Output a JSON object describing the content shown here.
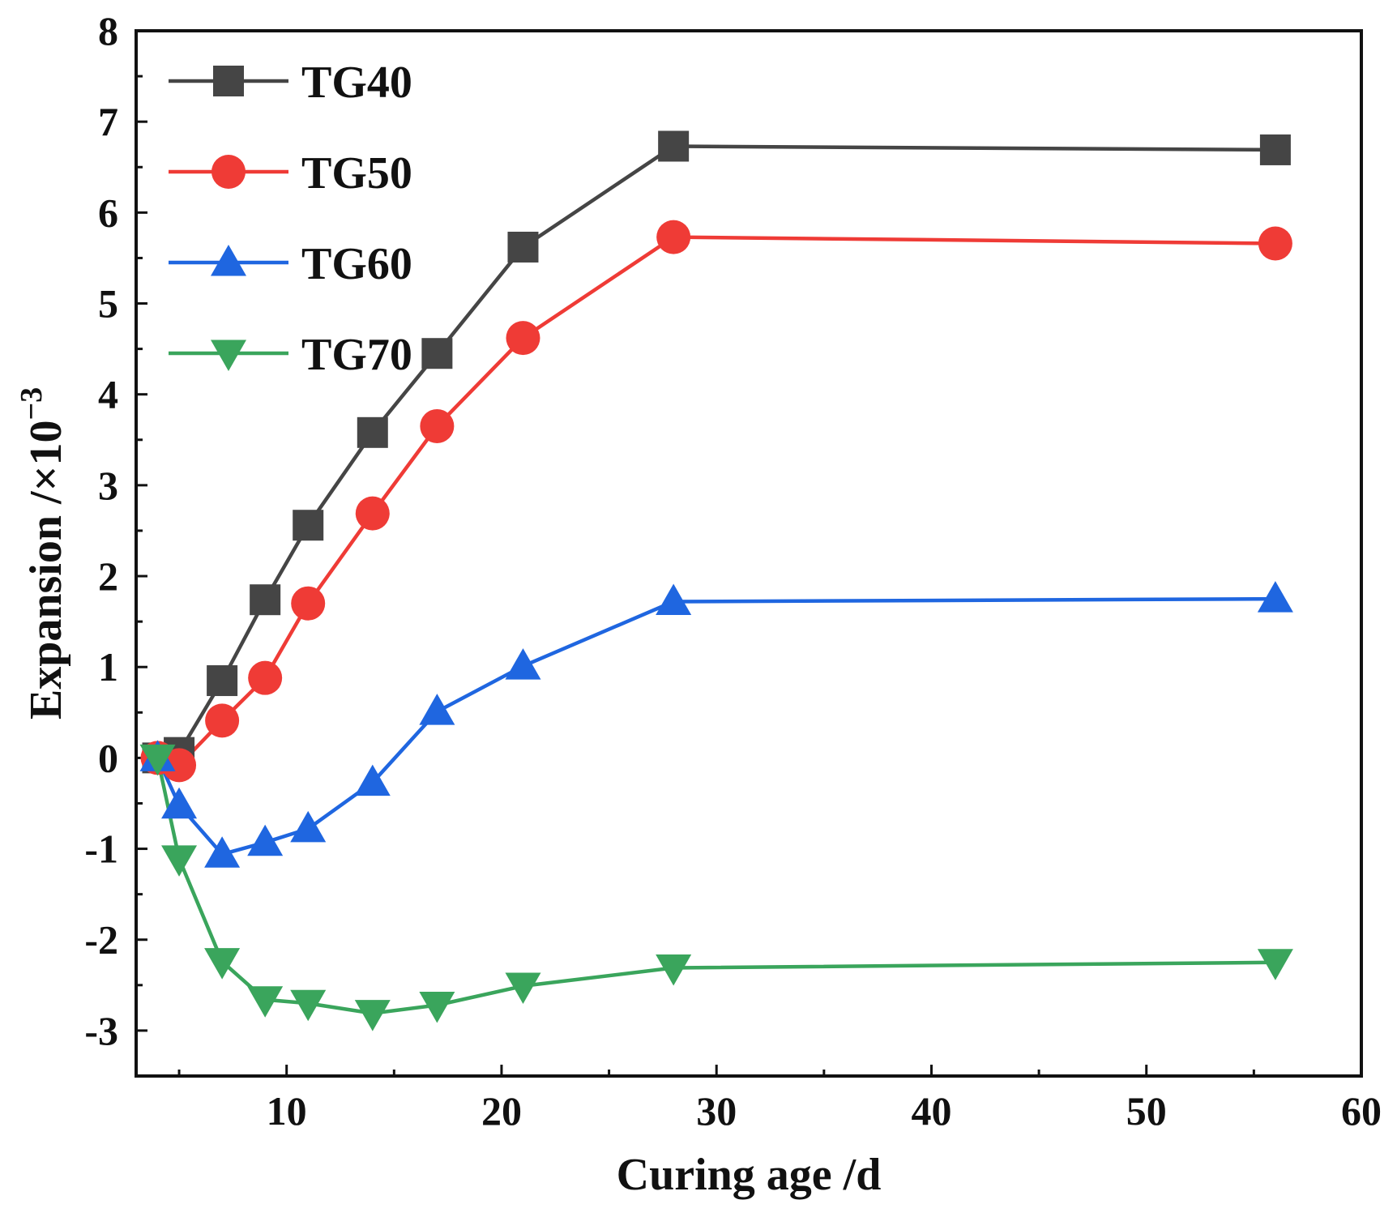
{
  "chart_data": {
    "type": "line",
    "title": "",
    "xlabel": "Curing age /d",
    "ylabel_main": "Expansion /×10",
    "ylabel_exponent": "−3",
    "xlim": [
      3,
      60
    ],
    "ylim": [
      -3.5,
      8
    ],
    "xticks": [
      10,
      20,
      30,
      40,
      50,
      60
    ],
    "yticks": [
      -3,
      -2,
      -1,
      0,
      1,
      2,
      3,
      4,
      5,
      6,
      7,
      8
    ],
    "x": [
      4,
      5,
      7,
      9,
      11,
      14,
      17,
      21,
      28,
      56
    ],
    "legend_position": "top-left",
    "series": [
      {
        "name": "TG40",
        "color": "#454545",
        "marker": "square",
        "values": [
          0.0,
          0.06,
          0.85,
          1.74,
          2.56,
          3.58,
          4.45,
          5.62,
          6.73,
          6.69
        ]
      },
      {
        "name": "TG50",
        "color": "#ef3b36",
        "marker": "circle",
        "values": [
          0.0,
          -0.08,
          0.41,
          0.88,
          1.7,
          2.69,
          3.65,
          4.62,
          5.73,
          5.66
        ]
      },
      {
        "name": "TG60",
        "color": "#1f66e0",
        "marker": "triangle-up",
        "values": [
          0.0,
          -0.52,
          -1.06,
          -0.93,
          -0.78,
          -0.27,
          0.51,
          1.01,
          1.72,
          1.75
        ]
      },
      {
        "name": "TG70",
        "color": "#3aa55c",
        "marker": "triangle-down",
        "values": [
          0.0,
          -1.11,
          -2.24,
          -2.66,
          -2.7,
          -2.81,
          -2.72,
          -2.51,
          -2.31,
          -2.25
        ]
      }
    ]
  }
}
